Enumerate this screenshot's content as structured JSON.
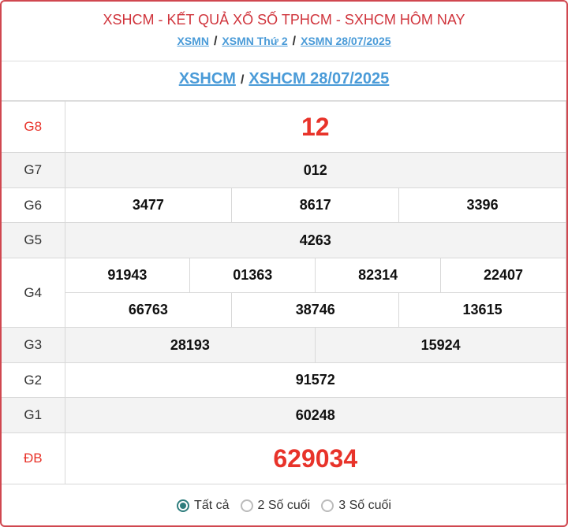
{
  "header": {
    "title": "XSHCM - KẾT QUẢ XỔ SỐ TPHCM - SXHCM HÔM NAY",
    "crumbs": [
      "XSMN",
      "XSMN Thứ 2",
      "XSMN 28/07/2025"
    ],
    "sep": "/"
  },
  "sub": {
    "links": [
      "XSHCM",
      "XSHCM 28/07/2025"
    ]
  },
  "prizes": {
    "G8": {
      "label": "G8",
      "values": [
        "12"
      ]
    },
    "G7": {
      "label": "G7",
      "values": [
        "012"
      ]
    },
    "G6": {
      "label": "G6",
      "values": [
        "3477",
        "8617",
        "3396"
      ]
    },
    "G5": {
      "label": "G5",
      "values": [
        "4263"
      ]
    },
    "G4": {
      "label": "G4",
      "values": [
        "91943",
        "01363",
        "82314",
        "22407",
        "66763",
        "38746",
        "13615"
      ]
    },
    "G3": {
      "label": "G3",
      "values": [
        "28193",
        "15924"
      ]
    },
    "G2": {
      "label": "G2",
      "values": [
        "91572"
      ]
    },
    "G1": {
      "label": "G1",
      "values": [
        "60248"
      ]
    },
    "DB": {
      "label": "ĐB",
      "values": [
        "629034"
      ]
    }
  },
  "filter": {
    "options": [
      "Tất cả",
      "2 Số cuối",
      "3 Số cuối"
    ],
    "selected": "Tất cả"
  },
  "colors": {
    "accent": "#e8332a",
    "link": "#4a9bd8",
    "border": "#d0474f",
    "radio": "#2e7d7d"
  }
}
